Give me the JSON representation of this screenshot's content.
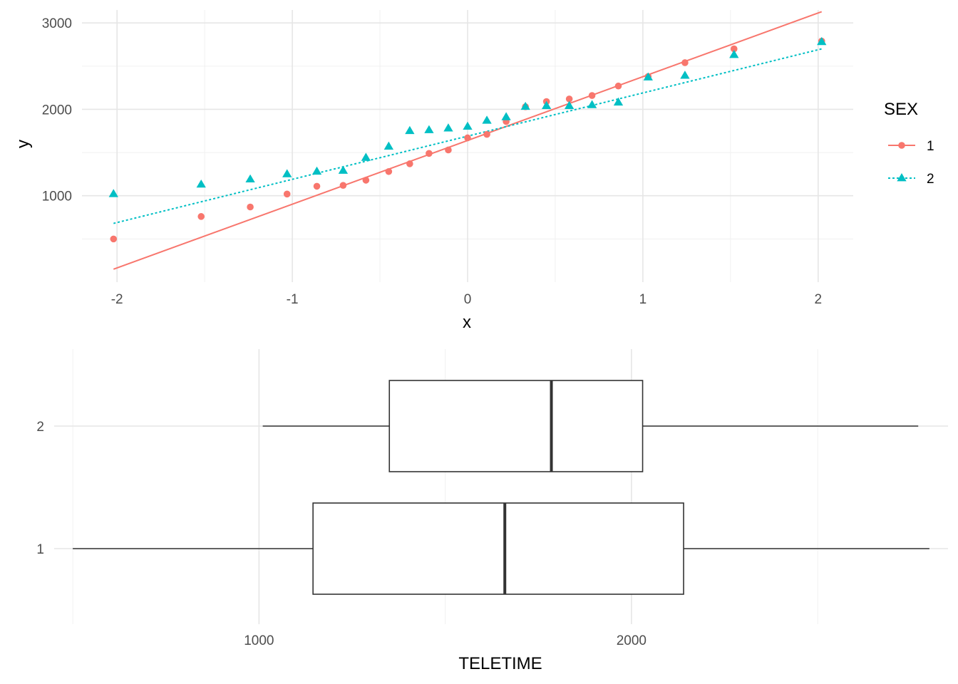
{
  "chart_data": [
    {
      "type": "scatter",
      "xlabel": "x",
      "ylabel": "y",
      "xlim": [
        -2.2,
        2.2
      ],
      "ylim": [
        0,
        3150
      ],
      "x_ticks": [
        -2,
        -1,
        0,
        1,
        2
      ],
      "x_tick_labels": [
        "-2",
        "-1",
        "0",
        "1",
        "2"
      ],
      "y_ticks": [
        1000,
        2000,
        3000
      ],
      "y_tick_labels": [
        "1000",
        "2000",
        "3000"
      ],
      "grid": true,
      "legend": {
        "title": "SEX",
        "position": "right",
        "entries": [
          "1",
          "2"
        ]
      },
      "series": [
        {
          "name": "1",
          "color": "#F8766D",
          "marker": "circle",
          "line_style": "solid",
          "x": [
            -2.02,
            -1.52,
            -1.24,
            -1.03,
            -0.86,
            -0.71,
            -0.58,
            -0.45,
            -0.33,
            -0.22,
            -0.11,
            0.0,
            0.11,
            0.22,
            0.33,
            0.45,
            0.58,
            0.71,
            0.86,
            1.03,
            1.24,
            1.52,
            2.02
          ],
          "y": [
            500,
            760,
            870,
            1020,
            1110,
            1120,
            1180,
            1280,
            1370,
            1490,
            1530,
            1670,
            1710,
            1860,
            2030,
            2090,
            2120,
            2160,
            2270,
            2380,
            2540,
            2700,
            2790
          ],
          "fit_line": {
            "x": [
              -2.02,
              2.02
            ],
            "y": [
              150,
              3130
            ]
          }
        },
        {
          "name": "2",
          "color": "#00BFC4",
          "marker": "triangle",
          "line_style": "dotted",
          "x": [
            -2.02,
            -1.52,
            -1.24,
            -1.03,
            -0.86,
            -0.71,
            -0.58,
            -0.45,
            -0.33,
            -0.22,
            -0.11,
            0.0,
            0.11,
            0.22,
            0.33,
            0.45,
            0.58,
            0.71,
            0.86,
            1.03,
            1.24,
            1.52,
            2.02
          ],
          "y": [
            1020,
            1130,
            1190,
            1250,
            1280,
            1290,
            1440,
            1570,
            1750,
            1760,
            1780,
            1800,
            1870,
            1910,
            2030,
            2040,
            2040,
            2050,
            2080,
            2370,
            2390,
            2630,
            2780
          ],
          "fit_line": {
            "x": [
              -2.02,
              2.02
            ],
            "y": [
              680,
              2700
            ]
          }
        }
      ]
    },
    {
      "type": "boxplot",
      "xlabel": "TELETIME",
      "ylabel": "",
      "xlim": [
        450,
        2850
      ],
      "x_ticks": [
        1000,
        2000
      ],
      "x_tick_labels": [
        "1000",
        "2000"
      ],
      "categories": [
        "1",
        "2"
      ],
      "grid": true,
      "boxes": [
        {
          "category": "1",
          "whisker_low": 500,
          "q1": 1145,
          "median": 1660,
          "q3": 2140,
          "whisker_high": 2800
        },
        {
          "category": "2",
          "whisker_low": 1010,
          "q1": 1350,
          "median": 1785,
          "q3": 2030,
          "whisker_high": 2770
        }
      ]
    }
  ]
}
